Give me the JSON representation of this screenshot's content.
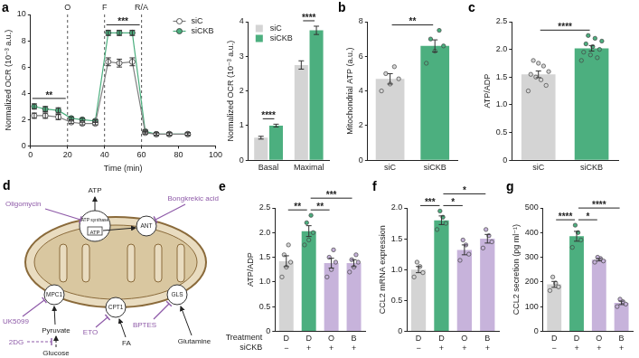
{
  "chart_data": [
    {
      "panel": "a",
      "type": "line",
      "xlabel": "Time (min)",
      "ylabel": "Normalized OCR (10⁻³ a.u.)",
      "x": [
        2,
        8,
        15,
        22,
        28,
        35,
        42,
        48,
        55,
        62,
        68,
        75,
        85
      ],
      "series": [
        {
          "name": "siC",
          "color": "#7f7f7f",
          "marker": "circle_open",
          "values": [
            2.3,
            2.3,
            2.2,
            1.8,
            1.7,
            1.7,
            6.4,
            6.3,
            6.4,
            1.0,
            0.9,
            0.9,
            0.9
          ],
          "errors": [
            0.2,
            0.2,
            0.2,
            0.1,
            0.1,
            0.1,
            0.3,
            0.3,
            0.3,
            0.1,
            0.1,
            0.1,
            0.1
          ]
        },
        {
          "name": "siCKB",
          "color": "#4caf7f",
          "marker": "circle",
          "values": [
            3.0,
            2.8,
            2.7,
            2.1,
            2.0,
            1.9,
            8.6,
            8.6,
            8.6,
            1.1,
            0.9,
            0.9,
            0.9
          ],
          "errors": [
            0.2,
            0.2,
            0.2,
            0.1,
            0.1,
            0.1,
            0.2,
            0.2,
            0.2,
            0.1,
            0.1,
            0.1,
            0.1
          ]
        }
      ],
      "xlim": [
        0,
        100
      ],
      "xticks": [
        0,
        20,
        40,
        60,
        80,
        100
      ],
      "ylim": [
        0,
        10
      ],
      "yticks": [
        0,
        2,
        4,
        6,
        8,
        10
      ],
      "grid": false,
      "legend": "upper right",
      "vlines": [
        {
          "x": 20,
          "label": "O"
        },
        {
          "x": 40,
          "label": "F"
        },
        {
          "x": 60,
          "label": "R/A"
        }
      ],
      "significance": [
        {
          "text": "**",
          "from": 0,
          "to": 20
        },
        {
          "text": "***",
          "from": 40,
          "to": 60
        }
      ]
    },
    {
      "type": "bar",
      "ylabel": "Normalized OCR (10⁻³ a.u.)",
      "categories": [
        "Basal",
        "Maximal"
      ],
      "series": [
        {
          "name": "siC",
          "color": "#d4d4d4",
          "values": [
            0.65,
            2.75
          ],
          "errors": [
            0.04,
            0.12
          ]
        },
        {
          "name": "siCKB",
          "color": "#4caf7f",
          "values": [
            1.0,
            3.75
          ],
          "errors": [
            0.04,
            0.12
          ]
        }
      ],
      "ylim": [
        0,
        4
      ],
      "yticks": [
        0,
        1,
        2,
        3,
        4
      ],
      "grid": false,
      "legend": "upper left",
      "significance": [
        {
          "text": "****",
          "from": 0,
          "to": 0
        },
        {
          "text": "****",
          "from": 1,
          "to": 1
        }
      ]
    },
    {
      "panel": "b",
      "type": "bar",
      "ylabel": "Mitochondrial ATP (a.u.)",
      "categories": [
        "siC",
        "siCKB"
      ],
      "values": [
        4.7,
        6.6
      ],
      "errors": [
        0.3,
        0.35
      ],
      "points": [
        [
          4.0,
          4.4,
          4.7,
          5.0,
          5.4
        ],
        [
          5.6,
          6.3,
          6.6,
          7.0,
          7.5
        ]
      ],
      "colors": [
        "#d4d4d4",
        "#4caf7f"
      ],
      "ylim": [
        0,
        8
      ],
      "yticks": [
        0,
        2,
        4,
        6,
        8
      ],
      "grid": false,
      "significance": [
        {
          "text": "**",
          "from": 0,
          "to": 1
        }
      ]
    },
    {
      "panel": "c",
      "type": "bar",
      "ylabel": "ATP/ADP",
      "categories": [
        "siC",
        "siCKB"
      ],
      "values": [
        1.55,
        2.02
      ],
      "errors": [
        0.06,
        0.05
      ],
      "points": [
        [
          1.25,
          1.35,
          1.45,
          1.5,
          1.55,
          1.6,
          1.7,
          1.75,
          1.8
        ],
        [
          1.8,
          1.85,
          1.9,
          1.95,
          2.0,
          2.05,
          2.1,
          2.15,
          2.2,
          2.25
        ]
      ],
      "colors": [
        "#d4d4d4",
        "#4caf7f"
      ],
      "ylim": [
        0,
        2.5
      ],
      "yticks": [
        0,
        0.5,
        {
          "value": 1,
          "label": "1.0"
        },
        1.5,
        {
          "value": 2,
          "label": "2.0"
        },
        2.5
      ],
      "grid": false,
      "significance": [
        {
          "text": "****",
          "from": 0,
          "to": 1
        }
      ]
    },
    {
      "panel": "e",
      "type": "bar",
      "ylabel": "ATP/ADP",
      "categories": [
        "D",
        "D",
        "O",
        "B"
      ],
      "row_labels": [
        "Treatment",
        "siCKB"
      ],
      "row2": [
        "−",
        "+",
        "+",
        "+"
      ],
      "values": [
        1.42,
        2.03,
        1.38,
        1.38
      ],
      "errors": [
        0.11,
        0.11,
        0.1,
        0.07
      ],
      "points": [
        [
          1.1,
          1.3,
          1.4,
          1.55,
          1.75
        ],
        [
          1.75,
          1.85,
          2.0,
          2.2,
          2.35
        ],
        [
          1.1,
          1.25,
          1.4,
          1.5,
          1.65
        ],
        [
          1.2,
          1.3,
          1.4,
          1.45,
          1.55
        ]
      ],
      "colors": [
        "#d4d4d4",
        "#4caf7f",
        "#c7b3db",
        "#c7b3db"
      ],
      "ylim": [
        0,
        2.5
      ],
      "yticks": [
        0,
        0.5,
        {
          "value": 1,
          "label": "1.0"
        },
        1.5,
        {
          "value": 2,
          "label": "2.0"
        },
        2.5
      ],
      "grid": false,
      "significance": [
        {
          "text": "**",
          "from": 0,
          "to": 1
        },
        {
          "text": "**",
          "from": 1,
          "to": 2
        },
        {
          "text": "***",
          "from": 1,
          "to": 3
        }
      ]
    },
    {
      "panel": "f",
      "type": "bar",
      "ylabel": "CCL2 mRNA expression",
      "categories": [
        "D",
        "D",
        "O",
        "B"
      ],
      "row2": [
        "−",
        "+",
        "+",
        "+"
      ],
      "values": [
        1.0,
        1.8,
        1.32,
        1.5
      ],
      "errors": [
        0.05,
        0.07,
        0.08,
        0.07
      ],
      "points": [
        [
          0.88,
          0.95,
          1.05,
          1.12
        ],
        [
          1.65,
          1.75,
          1.85,
          1.95
        ],
        [
          1.15,
          1.25,
          1.4,
          1.48
        ],
        [
          1.35,
          1.45,
          1.55,
          1.65
        ]
      ],
      "colors": [
        "#d4d4d4",
        "#4caf7f",
        "#c7b3db",
        "#c7b3db"
      ],
      "ylim": [
        0,
        2
      ],
      "yticks": [
        0,
        0.5,
        {
          "value": 1,
          "label": "1.0"
        },
        1.5,
        {
          "value": 2,
          "label": "2.0"
        }
      ],
      "grid": false,
      "significance": [
        {
          "text": "***",
          "from": 0,
          "to": 1
        },
        {
          "text": "*",
          "from": 1,
          "to": 2
        },
        {
          "text": "*",
          "from": 1,
          "to": 3
        }
      ]
    },
    {
      "panel": "g",
      "type": "bar",
      "ylabel": "CCL2 secretion (pg ml⁻¹)",
      "categories": [
        "D",
        "D",
        "O",
        "B"
      ],
      "row2": [
        "−",
        "+",
        "+",
        "+"
      ],
      "values": [
        190,
        385,
        290,
        115
      ],
      "errors": [
        12,
        20,
        5,
        7
      ],
      "points": [
        [
          165,
          180,
          195,
          220
        ],
        [
          340,
          370,
          400,
          430
        ],
        [
          280,
          285,
          295,
          300
        ],
        [
          100,
          110,
          120,
          130
        ]
      ],
      "colors": [
        "#d4d4d4",
        "#4caf7f",
        "#c7b3db",
        "#c7b3db"
      ],
      "ylim": [
        0,
        500
      ],
      "yticks": [
        0,
        100,
        200,
        300,
        400,
        500
      ],
      "grid": false,
      "significance": [
        {
          "text": "****",
          "from": 0,
          "to": 1
        },
        {
          "text": "*",
          "from": 1,
          "to": 2
        },
        {
          "text": "****",
          "from": 1,
          "to": 3
        }
      ]
    }
  ],
  "diagram": {
    "panel": "d",
    "products": [
      "ATP",
      "ATP"
    ],
    "transporters": [
      "ATP synthase",
      "ANT",
      "MPC1",
      "CPT1",
      "GLS"
    ],
    "inhibitors": [
      "Oligomycin",
      "Bongkrekic acid",
      "UK5099",
      "ETO",
      "BPTES",
      "2DG"
    ],
    "substrates": [
      "Pyruvate",
      "FA",
      "Glutamine",
      "Glucose"
    ]
  }
}
